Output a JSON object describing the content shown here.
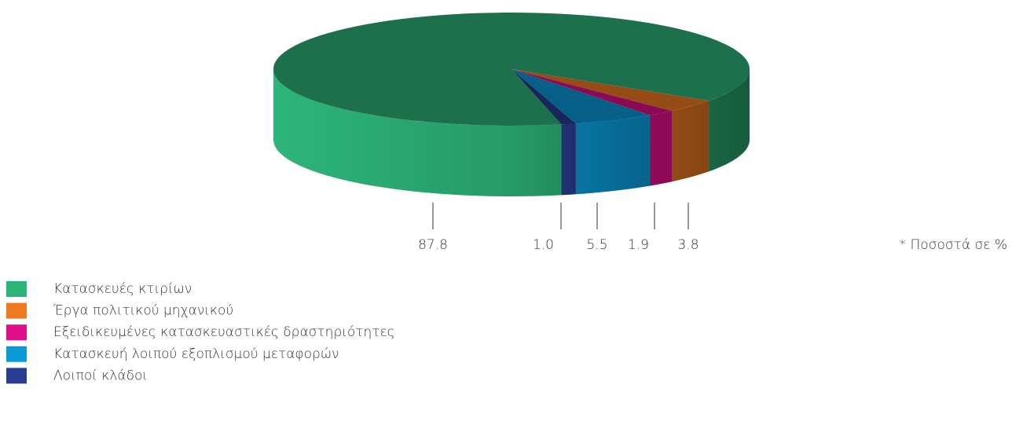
{
  "chart_data": {
    "type": "pie3d",
    "categories": [
      "Κατασκευές κτιρίων",
      "Έργα πολιτικού μηχανικού",
      "Εξειδικευμένες κατασκευαστικές δραστηριότητες",
      "Κατασκευή λοιπού εξοπλισμού μεταφορών",
      "Λοιποί κλάδοι"
    ],
    "values": [
      87.8,
      3.8,
      1.9,
      5.5,
      1.0
    ],
    "value_labels": [
      "87.8",
      "3.8",
      "1.9",
      "5.5",
      "1.0"
    ],
    "colors": [
      "#2db57a",
      "#f07a22",
      "#e0108a",
      "#0a9ad8",
      "#283e95"
    ],
    "annotation": "* Ποσοστά σε %",
    "legend": "bottom-left"
  }
}
